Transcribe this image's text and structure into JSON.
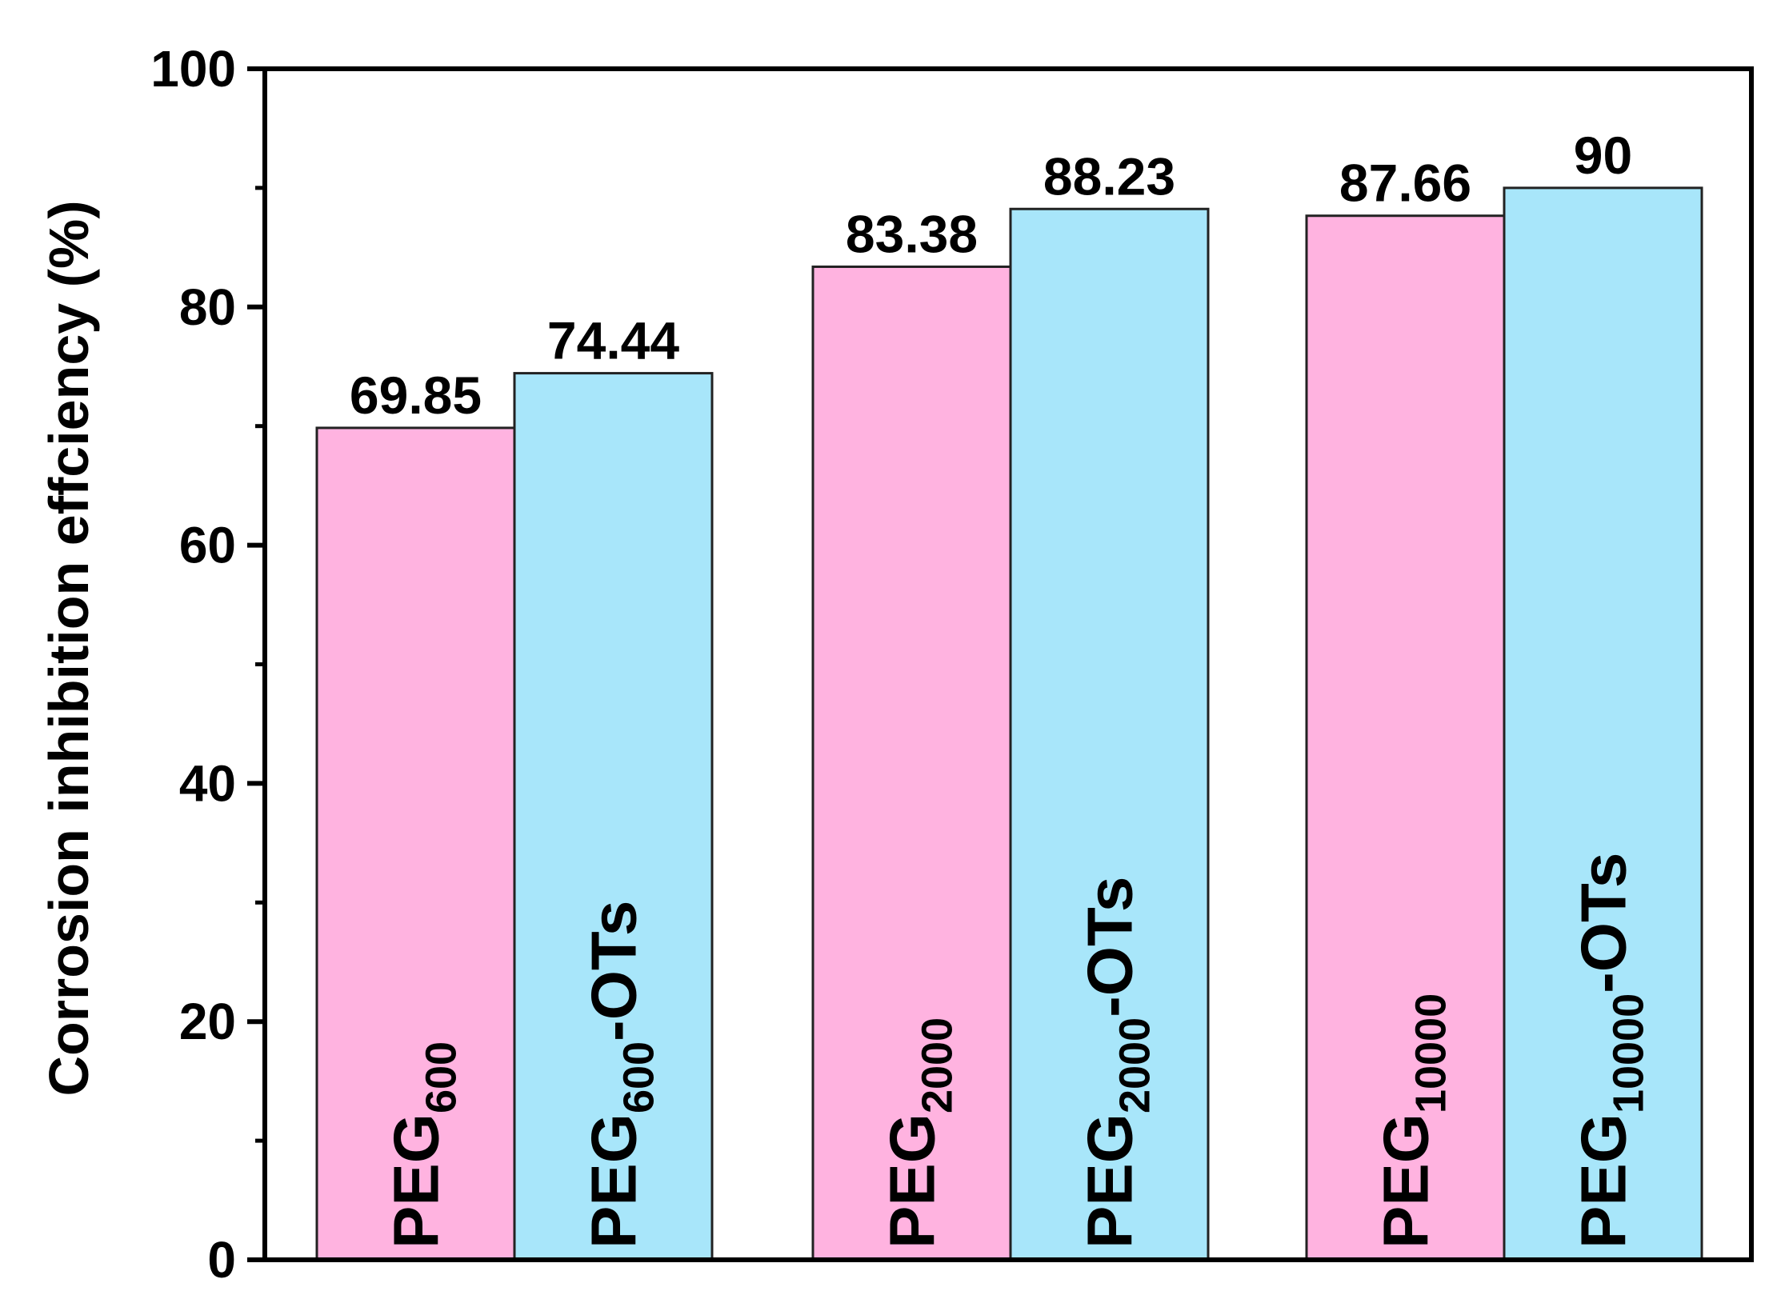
{
  "chart_data": {
    "type": "bar",
    "title": "",
    "xlabel": "",
    "ylabel": "Corrosion inhibition effciency (%)",
    "ylim": [
      0,
      100
    ],
    "yticks": [
      0,
      20,
      40,
      60,
      80,
      100
    ],
    "grid": false,
    "legend": "none",
    "bars": [
      {
        "group": 0,
        "base": "PEG",
        "sub": "600",
        "suffix": "",
        "value": 69.85,
        "value_label": "69.85",
        "color": "#ffb3e0"
      },
      {
        "group": 0,
        "base": "PEG",
        "sub": "600",
        "suffix": "-OTs",
        "value": 74.44,
        "value_label": "74.44",
        "color": "#a8e6fa"
      },
      {
        "group": 1,
        "base": "PEG",
        "sub": "2000",
        "suffix": "",
        "value": 83.38,
        "value_label": "83.38",
        "color": "#ffb3e0"
      },
      {
        "group": 1,
        "base": "PEG",
        "sub": "2000",
        "suffix": "-OTs",
        "value": 88.23,
        "value_label": "88.23",
        "color": "#a8e6fa"
      },
      {
        "group": 2,
        "base": "PEG",
        "sub": "10000",
        "suffix": "",
        "value": 87.66,
        "value_label": "87.66",
        "color": "#ffb3e0"
      },
      {
        "group": 2,
        "base": "PEG",
        "sub": "10000",
        "suffix": "-OTs",
        "value": 90,
        "value_label": "90",
        "color": "#a8e6fa"
      }
    ]
  }
}
